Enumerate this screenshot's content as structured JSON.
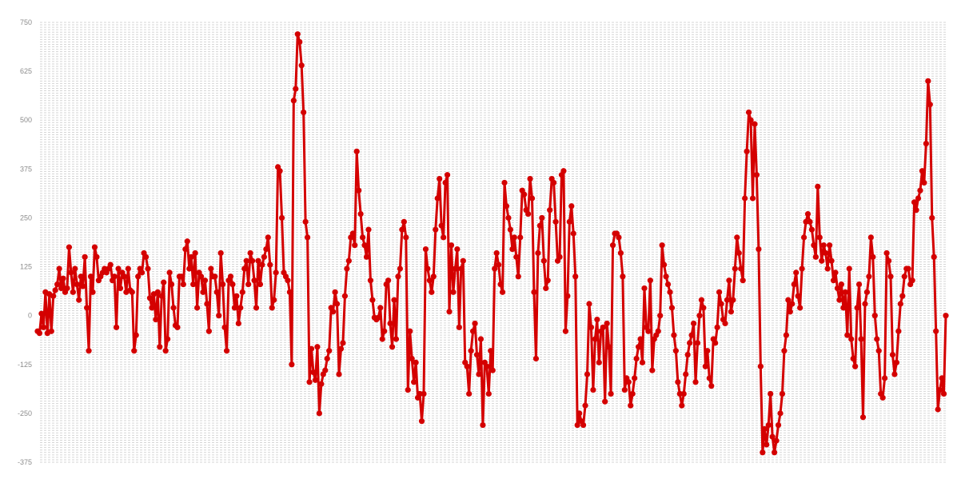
{
  "chart_data": {
    "type": "line",
    "title": "",
    "xlabel": "",
    "ylabel": "",
    "ylim": [
      -375,
      750
    ],
    "yticks": [
      "750",
      "625",
      "500",
      "375",
      "250",
      "125",
      "0",
      "-125",
      "-250",
      "-375"
    ],
    "grid": true,
    "legend": "none",
    "series": [
      {
        "color": "#d40000",
        "values": [
          -40,
          -45,
          5,
          -30,
          60,
          -45,
          55,
          -40,
          50,
          65,
          80,
          120,
          70,
          95,
          60,
          70,
          175,
          110,
          60,
          120,
          80,
          40,
          100,
          75,
          150,
          20,
          -90,
          100,
          60,
          175,
          150,
          90,
          100,
          110,
          120,
          110,
          120,
          130,
          90,
          100,
          -30,
          120,
          70,
          110,
          100,
          60,
          120,
          65,
          60,
          -90,
          -50,
          100,
          120,
          110,
          160,
          150,
          120,
          45,
          20,
          55,
          -10,
          60,
          -80,
          50,
          85,
          -90,
          -60,
          110,
          80,
          20,
          -25,
          -30,
          100,
          100,
          80,
          170,
          190,
          120,
          150,
          80,
          160,
          20,
          110,
          100,
          60,
          90,
          30,
          -40,
          120,
          100,
          100,
          60,
          0,
          160,
          80,
          -30,
          -90,
          90,
          100,
          80,
          20,
          50,
          -20,
          20,
          60,
          120,
          140,
          80,
          160,
          140,
          90,
          20,
          140,
          80,
          130,
          150,
          170,
          200,
          130,
          20,
          40,
          110,
          380,
          370,
          250,
          110,
          100,
          90,
          60,
          -125,
          550,
          580,
          720,
          700,
          640,
          520,
          240,
          200,
          -170,
          -85,
          -145,
          -165,
          -80,
          -250,
          -175,
          -150,
          -140,
          -110,
          -90,
          20,
          10,
          60,
          30,
          -150,
          -85,
          -70,
          50,
          120,
          140,
          200,
          210,
          180,
          420,
          320,
          260,
          200,
          180,
          150,
          220,
          90,
          40,
          -5,
          -10,
          -5,
          20,
          -60,
          -40,
          80,
          90,
          -20,
          -80,
          40,
          -60,
          100,
          120,
          220,
          240,
          200,
          -190,
          -40,
          -110,
          -170,
          -120,
          -210,
          -200,
          -270,
          -200,
          170,
          120,
          90,
          60,
          100,
          220,
          300,
          350,
          230,
          200,
          340,
          360,
          10,
          180,
          60,
          120,
          170,
          -30,
          120,
          140,
          -120,
          -130,
          -200,
          -90,
          -40,
          -20,
          -100,
          -150,
          -60,
          -280,
          -120,
          -130,
          -200,
          -90,
          -140,
          120,
          160,
          130,
          80,
          60,
          340,
          280,
          250,
          220,
          170,
          200,
          150,
          100,
          200,
          320,
          310,
          270,
          260,
          350,
          300,
          60,
          -110,
          160,
          230,
          250,
          140,
          70,
          90,
          270,
          350,
          340,
          240,
          140,
          150,
          360,
          370,
          -40,
          50,
          240,
          280,
          210,
          100,
          -280,
          -250,
          -270,
          -280,
          -230,
          -150,
          30,
          -30,
          -190,
          -60,
          -10,
          -120,
          -40,
          -30,
          -220,
          -20,
          -80,
          -200,
          180,
          210,
          210,
          200,
          160,
          100,
          -190,
          -160,
          -170,
          -230,
          -200,
          -160,
          -110,
          -80,
          -60,
          -120,
          70,
          -30,
          -40,
          90,
          -140,
          -60,
          -50,
          -40,
          0,
          180,
          130,
          100,
          80,
          60,
          20,
          -50,
          -90,
          -170,
          -200,
          -230,
          -200,
          -150,
          -100,
          -70,
          -50,
          -20,
          -170,
          -70,
          0,
          40,
          20,
          -130,
          -90,
          -160,
          -180,
          -60,
          -70,
          -30,
          60,
          30,
          -10,
          -20,
          40,
          90,
          10,
          40,
          120,
          200,
          160,
          120,
          90,
          300,
          420,
          520,
          500,
          300,
          490,
          360,
          170,
          -130,
          -350,
          -290,
          -330,
          -280,
          -200,
          -310,
          -350,
          -320,
          -280,
          -250,
          -200,
          -90,
          -50,
          40,
          10,
          30,
          80,
          110,
          50,
          20,
          120,
          200,
          240,
          260,
          240,
          220,
          180,
          150,
          330,
          200,
          140,
          180,
          160,
          120,
          180,
          140,
          90,
          110,
          70,
          40,
          80,
          20,
          60,
          -50,
          120,
          -60,
          -110,
          -130,
          20,
          80,
          -60,
          -260,
          30,
          60,
          100,
          200,
          150,
          0,
          -60,
          -90,
          -200,
          -210,
          -160,
          160,
          140,
          100,
          -100,
          -150,
          -120,
          -40,
          30,
          50,
          100,
          120,
          120,
          80,
          90,
          290,
          270,
          300,
          320,
          370,
          340,
          440,
          600,
          540,
          250,
          150,
          -40,
          -240,
          -190,
          -160,
          -200,
          0
        ]
      }
    ]
  }
}
